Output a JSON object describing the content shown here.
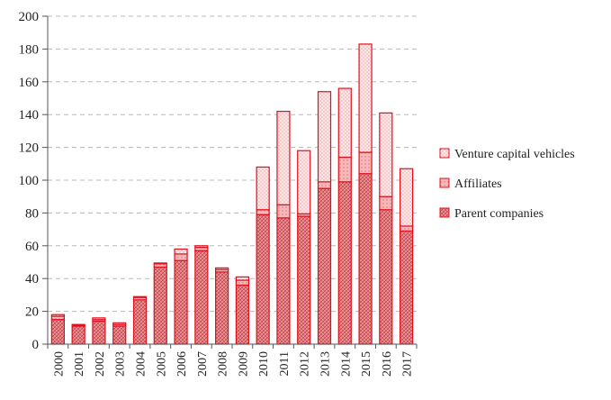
{
  "chart_data": {
    "type": "bar",
    "stacked": true,
    "categories": [
      "2000",
      "2001",
      "2002",
      "2003",
      "2004",
      "2005",
      "2006",
      "2007",
      "2008",
      "2009",
      "2010",
      "2011",
      "2012",
      "2013",
      "2014",
      "2015",
      "2016",
      "2017"
    ],
    "series": [
      {
        "name": "Parent companies",
        "values": [
          15,
          11,
          14,
          11,
          27,
          47,
          51,
          57,
          44,
          36,
          79,
          77,
          78,
          95,
          99,
          104,
          82,
          69
        ]
      },
      {
        "name": "Affiliates",
        "values": [
          2,
          0.5,
          1,
          1,
          1.5,
          2,
          4,
          2,
          1.5,
          3,
          3,
          8,
          1.5,
          4,
          15,
          13,
          8,
          3
        ]
      },
      {
        "name": "Venture capital vehicles",
        "values": [
          1,
          0.5,
          1,
          1,
          0.5,
          0.5,
          3,
          1,
          1,
          2,
          26,
          57,
          38.5,
          55,
          42,
          66,
          51,
          35
        ]
      }
    ],
    "yticks": [
      "0",
      "20",
      "40",
      "60",
      "80",
      "100",
      "120",
      "140",
      "160",
      "180",
      "200"
    ],
    "ylim": [
      0,
      200
    ],
    "grid": true,
    "legend_position": "right",
    "colors": {
      "outline": "#e0101e",
      "parent_fill": "#e8767a",
      "affiliates_fill": "#f6b8b9",
      "venture_fill": "#fbe3e3",
      "grid": "#b8b8b8"
    }
  }
}
